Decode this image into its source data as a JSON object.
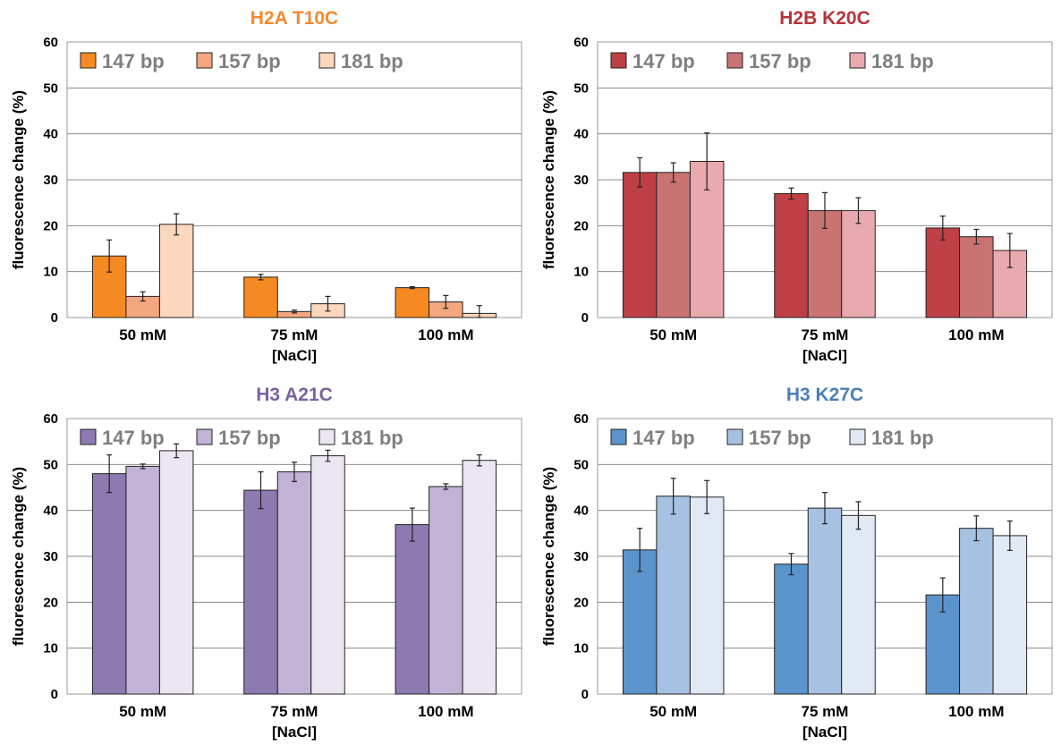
{
  "chart_data": [
    {
      "type": "bar",
      "title": "H2A T10C",
      "title_color": "#f28a2c",
      "xlabel": "[NaCl]",
      "ylabel": "fluorescence change (%)",
      "ylim": [
        0,
        60
      ],
      "yticks": [
        0,
        10,
        20,
        30,
        40,
        50,
        60
      ],
      "grid": true,
      "legend": "top-left",
      "categories": [
        "50 mM",
        "75 mM",
        "100 mM"
      ],
      "series": [
        {
          "name": "147 bp",
          "color": "#f58a23",
          "values": [
            13.4,
            8.8,
            6.5
          ],
          "errors": [
            3.5,
            0.6,
            0.2
          ]
        },
        {
          "name": "157 bp",
          "color": "#f4a77e",
          "values": [
            4.6,
            1.3,
            3.4
          ],
          "errors": [
            1.0,
            0.3,
            1.4
          ]
        },
        {
          "name": "181 bp",
          "color": "#fbd7bd",
          "values": [
            20.3,
            3.0,
            0.9
          ],
          "errors": [
            2.3,
            1.6,
            1.7
          ]
        }
      ]
    },
    {
      "type": "bar",
      "title": "H2B K20C",
      "title_color": "#b5343a",
      "xlabel": "[NaCl]",
      "ylabel": "fluorescence change (%)",
      "ylim": [
        0,
        60
      ],
      "yticks": [
        0,
        10,
        20,
        30,
        40,
        50,
        60
      ],
      "grid": true,
      "legend": "top-left",
      "categories": [
        "50 mM",
        "75 mM",
        "100 mM"
      ],
      "series": [
        {
          "name": "147 bp",
          "color": "#be3f45",
          "values": [
            31.6,
            27.0,
            19.5
          ],
          "errors": [
            3.2,
            1.2,
            2.6
          ]
        },
        {
          "name": "157 bp",
          "color": "#c97472",
          "values": [
            31.6,
            23.3,
            17.6
          ],
          "errors": [
            2.1,
            3.9,
            1.6
          ]
        },
        {
          "name": "181 bp",
          "color": "#e8aaae",
          "values": [
            34.0,
            23.3,
            14.6
          ],
          "errors": [
            6.2,
            2.8,
            3.7
          ]
        }
      ]
    },
    {
      "type": "bar",
      "title": "H3 A21C",
      "title_color": "#7a62a0",
      "xlabel": "[NaCl]",
      "ylabel": "fluorescence change (%)",
      "ylim": [
        0,
        60
      ],
      "yticks": [
        0,
        10,
        20,
        30,
        40,
        50,
        60
      ],
      "grid": true,
      "legend": "top-left",
      "categories": [
        "50 mM",
        "75 mM",
        "100 mM"
      ],
      "series": [
        {
          "name": "147 bp",
          "color": "#8f79b1",
          "values": [
            48.0,
            44.4,
            36.9
          ],
          "errors": [
            4.1,
            4.0,
            3.6
          ]
        },
        {
          "name": "157 bp",
          "color": "#c1b2d6",
          "values": [
            49.6,
            48.4,
            45.2
          ],
          "errors": [
            0.5,
            2.1,
            0.6
          ]
        },
        {
          "name": "181 bp",
          "color": "#ebe6f1",
          "values": [
            53.0,
            51.9,
            50.9
          ],
          "errors": [
            1.5,
            1.2,
            1.2
          ]
        }
      ]
    },
    {
      "type": "bar",
      "title": "H3 K27C",
      "title_color": "#4a7fb8",
      "xlabel": "[NaCl]",
      "ylabel": "fluorescence change (%)",
      "ylim": [
        0,
        60
      ],
      "yticks": [
        0,
        10,
        20,
        30,
        40,
        50,
        60
      ],
      "grid": true,
      "legend": "top-left",
      "categories": [
        "50 mM",
        "75 mM",
        "100 mM"
      ],
      "series": [
        {
          "name": "147 bp",
          "color": "#5b94cb",
          "values": [
            31.4,
            28.3,
            21.6
          ],
          "errors": [
            4.7,
            2.3,
            3.7
          ]
        },
        {
          "name": "157 bp",
          "color": "#a6c1e1",
          "values": [
            43.1,
            40.5,
            36.1
          ],
          "errors": [
            3.9,
            3.4,
            2.7
          ]
        },
        {
          "name": "181 bp",
          "color": "#e1e9f4",
          "values": [
            42.9,
            38.9,
            34.5
          ],
          "errors": [
            3.6,
            3.0,
            3.2
          ]
        }
      ]
    }
  ]
}
